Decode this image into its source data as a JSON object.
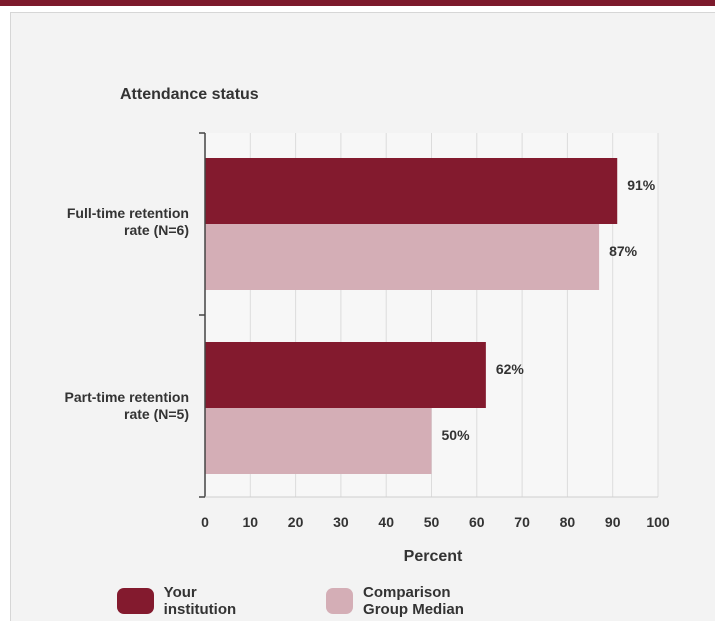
{
  "chart_data": {
    "type": "bar",
    "orientation": "horizontal",
    "title": "Attendance status",
    "xlabel": "Percent",
    "xlim": [
      0,
      100
    ],
    "x_ticks": [
      "0",
      "10",
      "20",
      "30",
      "40",
      "50",
      "60",
      "70",
      "80",
      "90",
      "100"
    ],
    "categories": [
      [
        "Full-time retention",
        "rate (N=6)"
      ],
      [
        "Part-time retention",
        "rate (N=5)"
      ]
    ],
    "series": [
      {
        "name": "Your institution",
        "color": "#831a2e",
        "values": [
          91,
          62
        ],
        "labels": [
          "91%",
          "62%"
        ]
      },
      {
        "name": "Comparison Group Median",
        "color": "#d4aeb6",
        "values": [
          87,
          50
        ],
        "labels": [
          "87%",
          "50%"
        ]
      }
    ],
    "grid": true,
    "legend_position": "bottom"
  }
}
